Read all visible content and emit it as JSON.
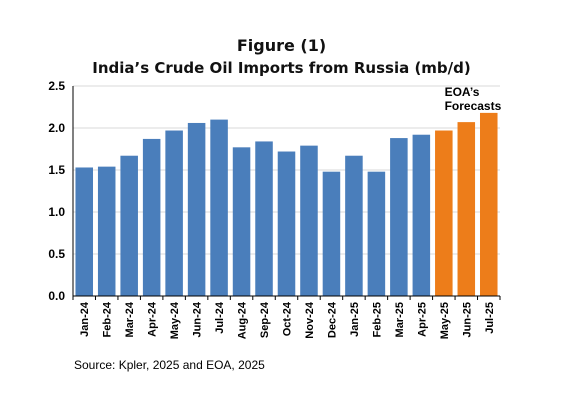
{
  "figure_label": "Figure (1)",
  "chart_data": {
    "type": "bar",
    "title": "India’s Crude Oil Imports from Russia (mb/d)",
    "categories": [
      "Jan-24",
      "Feb-24",
      "Mar-24",
      "Apr-24",
      "May-24",
      "Jun-24",
      "Jul-24",
      "Aug-24",
      "Sep-24",
      "Oct-24",
      "Nov-24",
      "Dec-24",
      "Jan-25",
      "Feb-25",
      "Mar-25",
      "Apr-25",
      "May-25",
      "Jun-25",
      "Jul-25"
    ],
    "values": [
      1.53,
      1.54,
      1.67,
      1.87,
      1.97,
      2.06,
      2.1,
      1.77,
      1.84,
      1.72,
      1.79,
      1.48,
      1.67,
      1.48,
      1.88,
      1.92,
      1.97,
      2.07,
      2.18
    ],
    "is_forecast": [
      false,
      false,
      false,
      false,
      false,
      false,
      false,
      false,
      false,
      false,
      false,
      false,
      false,
      false,
      false,
      false,
      true,
      true,
      true
    ],
    "ylim": [
      0,
      2.5
    ],
    "yticks": [
      "0.0",
      "0.5",
      "1.0",
      "1.5",
      "2.0",
      "2.5"
    ],
    "grid": true,
    "colors": {
      "actual": "#4a7ebb",
      "forecast": "#ed7d1a",
      "grid": "#d9d9d9",
      "axis": "#000000"
    },
    "annotation_lines": [
      "EOA’s",
      "Forecasts"
    ]
  },
  "source": "Source: Kpler, 2025 and EOA, 2025"
}
